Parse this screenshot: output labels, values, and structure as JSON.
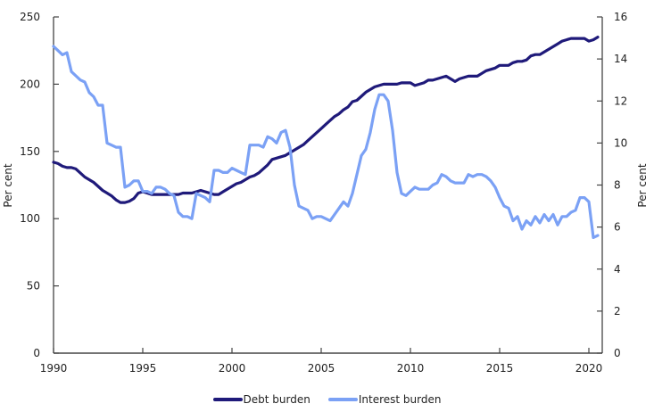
{
  "chart_data": {
    "type": "line",
    "title": "",
    "xlabel": "",
    "ylabel": "Per cent",
    "ylabel_right": "Per cent",
    "xlim": [
      1990,
      2020.75
    ],
    "ylim": [
      0,
      250
    ],
    "ylim_right": [
      0,
      16
    ],
    "x_ticks": [
      1990,
      1995,
      2000,
      2005,
      2010,
      2015,
      2020
    ],
    "y_ticks": [
      0,
      50,
      100,
      150,
      200,
      250
    ],
    "y_ticks_right": [
      0,
      2,
      4,
      6,
      8,
      10,
      12,
      14,
      16
    ],
    "grid": false,
    "legend_position": "bottom",
    "series": [
      {
        "name": "Debt burden",
        "axis": "left",
        "color": "#1f1a7a",
        "points": [
          [
            1990.0,
            142
          ],
          [
            1990.25,
            141
          ],
          [
            1990.5,
            139
          ],
          [
            1990.75,
            138
          ],
          [
            1991.0,
            138
          ],
          [
            1991.25,
            137
          ],
          [
            1991.5,
            134
          ],
          [
            1991.75,
            131
          ],
          [
            1992.0,
            129
          ],
          [
            1992.25,
            127
          ],
          [
            1992.5,
            124
          ],
          [
            1992.75,
            121
          ],
          [
            1993.0,
            119
          ],
          [
            1993.25,
            117
          ],
          [
            1993.5,
            114
          ],
          [
            1993.75,
            112
          ],
          [
            1994.0,
            112
          ],
          [
            1994.25,
            113
          ],
          [
            1994.5,
            115
          ],
          [
            1994.75,
            119
          ],
          [
            1995.0,
            120
          ],
          [
            1995.25,
            119
          ],
          [
            1995.5,
            118
          ],
          [
            1995.75,
            118
          ],
          [
            1996.0,
            118
          ],
          [
            1996.5,
            118
          ],
          [
            1997.0,
            118
          ],
          [
            1997.25,
            119
          ],
          [
            1997.5,
            119
          ],
          [
            1997.75,
            119
          ],
          [
            1998.0,
            120
          ],
          [
            1998.25,
            121
          ],
          [
            1998.5,
            120
          ],
          [
            1998.75,
            119
          ],
          [
            1999.0,
            118
          ],
          [
            1999.25,
            118
          ],
          [
            1999.5,
            120
          ],
          [
            1999.75,
            122
          ],
          [
            2000.0,
            124
          ],
          [
            2000.25,
            126
          ],
          [
            2000.5,
            127
          ],
          [
            2000.75,
            129
          ],
          [
            2001.0,
            131
          ],
          [
            2001.25,
            132
          ],
          [
            2001.5,
            134
          ],
          [
            2001.75,
            137
          ],
          [
            2002.0,
            140
          ],
          [
            2002.25,
            144
          ],
          [
            2002.5,
            145
          ],
          [
            2002.75,
            146
          ],
          [
            2003.0,
            147
          ],
          [
            2003.25,
            149
          ],
          [
            2003.5,
            151
          ],
          [
            2003.75,
            153
          ],
          [
            2004.0,
            155
          ],
          [
            2004.25,
            158
          ],
          [
            2004.5,
            161
          ],
          [
            2004.75,
            164
          ],
          [
            2005.0,
            167
          ],
          [
            2005.25,
            170
          ],
          [
            2005.5,
            173
          ],
          [
            2005.75,
            176
          ],
          [
            2006.0,
            178
          ],
          [
            2006.25,
            181
          ],
          [
            2006.5,
            183
          ],
          [
            2006.75,
            187
          ],
          [
            2007.0,
            188
          ],
          [
            2007.25,
            191
          ],
          [
            2007.5,
            194
          ],
          [
            2007.75,
            196
          ],
          [
            2008.0,
            198
          ],
          [
            2008.25,
            199
          ],
          [
            2008.5,
            200
          ],
          [
            2008.75,
            200
          ],
          [
            2009.0,
            200
          ],
          [
            2009.25,
            200
          ],
          [
            2009.5,
            201
          ],
          [
            2009.75,
            201
          ],
          [
            2010.0,
            201
          ],
          [
            2010.25,
            199
          ],
          [
            2010.5,
            200
          ],
          [
            2010.75,
            201
          ],
          [
            2011.0,
            203
          ],
          [
            2011.25,
            203
          ],
          [
            2011.5,
            204
          ],
          [
            2011.75,
            205
          ],
          [
            2012.0,
            206
          ],
          [
            2012.25,
            204
          ],
          [
            2012.5,
            202
          ],
          [
            2012.75,
            204
          ],
          [
            2013.0,
            205
          ],
          [
            2013.25,
            206
          ],
          [
            2013.5,
            206
          ],
          [
            2013.75,
            206
          ],
          [
            2014.0,
            208
          ],
          [
            2014.25,
            210
          ],
          [
            2014.5,
            211
          ],
          [
            2014.75,
            212
          ],
          [
            2015.0,
            214
          ],
          [
            2015.25,
            214
          ],
          [
            2015.5,
            214
          ],
          [
            2015.75,
            216
          ],
          [
            2016.0,
            217
          ],
          [
            2016.25,
            217
          ],
          [
            2016.5,
            218
          ],
          [
            2016.75,
            221
          ],
          [
            2017.0,
            222
          ],
          [
            2017.25,
            222
          ],
          [
            2017.5,
            224
          ],
          [
            2017.75,
            226
          ],
          [
            2018.0,
            228
          ],
          [
            2018.25,
            230
          ],
          [
            2018.5,
            232
          ],
          [
            2018.75,
            233
          ],
          [
            2019.0,
            234
          ],
          [
            2019.25,
            234
          ],
          [
            2019.5,
            234
          ],
          [
            2019.75,
            234
          ],
          [
            2020.0,
            232
          ],
          [
            2020.25,
            233
          ],
          [
            2020.5,
            235
          ]
        ]
      },
      {
        "name": "Interest burden",
        "axis": "right",
        "color": "#7ba1f5",
        "points": [
          [
            1990.0,
            14.6
          ],
          [
            1990.25,
            14.4
          ],
          [
            1990.5,
            14.2
          ],
          [
            1990.75,
            14.3
          ],
          [
            1991.0,
            13.4
          ],
          [
            1991.25,
            13.2
          ],
          [
            1991.5,
            13.0
          ],
          [
            1991.75,
            12.9
          ],
          [
            1992.0,
            12.4
          ],
          [
            1992.25,
            12.2
          ],
          [
            1992.5,
            11.8
          ],
          [
            1992.75,
            11.8
          ],
          [
            1993.0,
            10.0
          ],
          [
            1993.25,
            9.9
          ],
          [
            1993.5,
            9.8
          ],
          [
            1993.75,
            9.8
          ],
          [
            1994.0,
            7.9
          ],
          [
            1994.25,
            8.0
          ],
          [
            1994.5,
            8.2
          ],
          [
            1994.75,
            8.2
          ],
          [
            1995.0,
            7.7
          ],
          [
            1995.25,
            7.7
          ],
          [
            1995.5,
            7.6
          ],
          [
            1995.75,
            7.9
          ],
          [
            1996.0,
            7.9
          ],
          [
            1996.25,
            7.8
          ],
          [
            1996.5,
            7.6
          ],
          [
            1996.75,
            7.5
          ],
          [
            1997.0,
            6.7
          ],
          [
            1997.25,
            6.5
          ],
          [
            1997.5,
            6.5
          ],
          [
            1997.75,
            6.4
          ],
          [
            1998.0,
            7.6
          ],
          [
            1998.25,
            7.5
          ],
          [
            1998.5,
            7.4
          ],
          [
            1998.75,
            7.2
          ],
          [
            1999.0,
            8.7
          ],
          [
            1999.25,
            8.7
          ],
          [
            1999.5,
            8.6
          ],
          [
            1999.75,
            8.6
          ],
          [
            2000.0,
            8.8
          ],
          [
            2000.25,
            8.7
          ],
          [
            2000.5,
            8.6
          ],
          [
            2000.75,
            8.5
          ],
          [
            2001.0,
            9.9
          ],
          [
            2001.25,
            9.9
          ],
          [
            2001.5,
            9.9
          ],
          [
            2001.75,
            9.8
          ],
          [
            2002.0,
            10.3
          ],
          [
            2002.25,
            10.2
          ],
          [
            2002.5,
            10.0
          ],
          [
            2002.75,
            10.5
          ],
          [
            2003.0,
            10.6
          ],
          [
            2003.25,
            9.8
          ],
          [
            2003.5,
            8.0
          ],
          [
            2003.75,
            7.0
          ],
          [
            2004.0,
            6.9
          ],
          [
            2004.25,
            6.8
          ],
          [
            2004.5,
            6.4
          ],
          [
            2004.75,
            6.5
          ],
          [
            2005.0,
            6.5
          ],
          [
            2005.25,
            6.4
          ],
          [
            2005.5,
            6.3
          ],
          [
            2005.75,
            6.6
          ],
          [
            2006.0,
            6.9
          ],
          [
            2006.25,
            7.2
          ],
          [
            2006.5,
            7.0
          ],
          [
            2006.75,
            7.6
          ],
          [
            2007.0,
            8.5
          ],
          [
            2007.25,
            9.4
          ],
          [
            2007.5,
            9.7
          ],
          [
            2007.75,
            10.5
          ],
          [
            2008.0,
            11.6
          ],
          [
            2008.25,
            12.3
          ],
          [
            2008.5,
            12.3
          ],
          [
            2008.75,
            12.0
          ],
          [
            2009.0,
            10.6
          ],
          [
            2009.25,
            8.6
          ],
          [
            2009.5,
            7.6
          ],
          [
            2009.75,
            7.5
          ],
          [
            2010.0,
            7.7
          ],
          [
            2010.25,
            7.9
          ],
          [
            2010.5,
            7.8
          ],
          [
            2010.75,
            7.8
          ],
          [
            2011.0,
            7.8
          ],
          [
            2011.25,
            8.0
          ],
          [
            2011.5,
            8.1
          ],
          [
            2011.75,
            8.5
          ],
          [
            2012.0,
            8.4
          ],
          [
            2012.25,
            8.2
          ],
          [
            2012.5,
            8.1
          ],
          [
            2012.75,
            8.1
          ],
          [
            2013.0,
            8.1
          ],
          [
            2013.25,
            8.5
          ],
          [
            2013.5,
            8.4
          ],
          [
            2013.75,
            8.5
          ],
          [
            2014.0,
            8.5
          ],
          [
            2014.25,
            8.4
          ],
          [
            2014.5,
            8.2
          ],
          [
            2014.75,
            7.9
          ],
          [
            2015.0,
            7.4
          ],
          [
            2015.25,
            7.0
          ],
          [
            2015.5,
            6.9
          ],
          [
            2015.75,
            6.3
          ],
          [
            2016.0,
            6.5
          ],
          [
            2016.25,
            5.9
          ],
          [
            2016.5,
            6.3
          ],
          [
            2016.75,
            6.1
          ],
          [
            2017.0,
            6.5
          ],
          [
            2017.25,
            6.2
          ],
          [
            2017.5,
            6.6
          ],
          [
            2017.75,
            6.3
          ],
          [
            2018.0,
            6.6
          ],
          [
            2018.25,
            6.1
          ],
          [
            2018.5,
            6.5
          ],
          [
            2018.75,
            6.5
          ],
          [
            2019.0,
            6.7
          ],
          [
            2019.25,
            6.8
          ],
          [
            2019.5,
            7.4
          ],
          [
            2019.75,
            7.4
          ],
          [
            2020.0,
            7.2
          ],
          [
            2020.25,
            5.5
          ],
          [
            2020.5,
            5.6
          ]
        ]
      }
    ]
  },
  "legend": {
    "items": [
      {
        "label": "Debt burden",
        "color": "#1f1a7a"
      },
      {
        "label": "Interest burden",
        "color": "#7ba1f5"
      }
    ]
  },
  "axes": {
    "left_title": "Per cent",
    "right_title": "Per cent"
  }
}
